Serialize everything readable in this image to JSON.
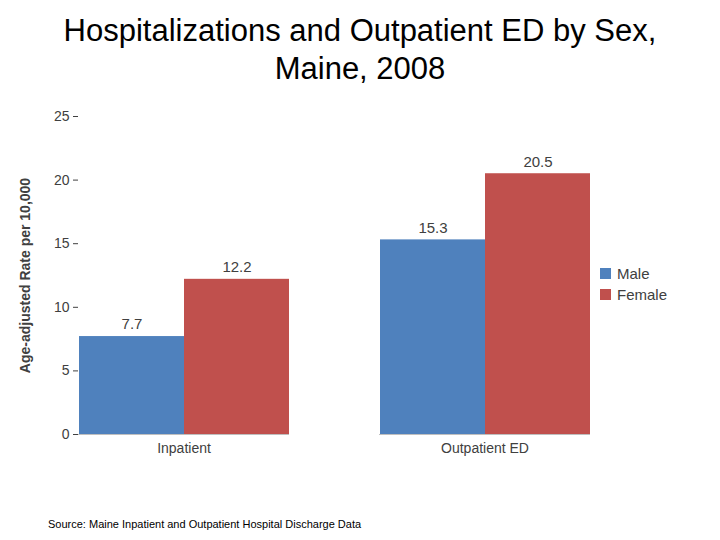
{
  "chart_data": {
    "type": "bar",
    "title": "Hospitalizations and Outpatient ED by Sex, Maine, 2008",
    "y_label": "Age-adjusted Rate per 10,000",
    "source": "Source: Maine Inpatient and Outpatient Hospital Discharge Data",
    "categories": [
      "Inpatient",
      "Outpatient ED"
    ],
    "series": [
      {
        "name": "Male",
        "color": "#4f81bd",
        "values": [
          7.7,
          15.3
        ]
      },
      {
        "name": "Female",
        "color": "#c0504d",
        "values": [
          12.2,
          20.5
        ]
      }
    ],
    "ylim": [
      0,
      25
    ],
    "yticks": [
      0,
      5,
      10,
      15,
      20,
      25
    ],
    "grid": false,
    "legend": "right",
    "data_labels": true
  }
}
